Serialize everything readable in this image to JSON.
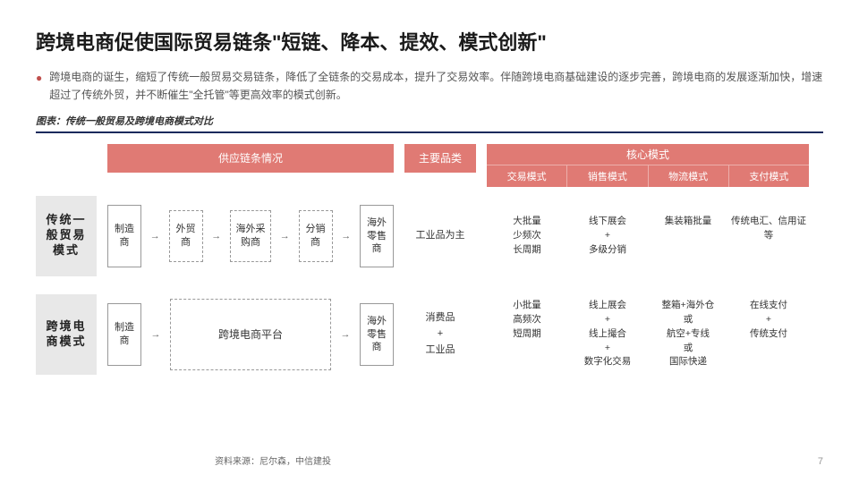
{
  "title": "跨境电商促使国际贸易链条\"短链、降本、提效、模式创新\"",
  "desc": "跨境电商的诞生，缩短了传统一般贸易交易链条，降低了全链条的交易成本，提升了交易效率。伴随跨境电商基础建设的逐步完善，跨境电商的发展逐渐加快，增速超过了传统外贸，并不断催生\"全托管\"等更高效率的模式创新。",
  "chart_caption": "图表：传统一般贸易及跨境电商模式对比",
  "headers": {
    "supply": "供应链条情况",
    "category": "主要品类",
    "core": "核心模式",
    "core_sub": [
      "交易模式",
      "销售模式",
      "物流模式",
      "支付模式"
    ]
  },
  "row1": {
    "label": "传统一般贸易模式",
    "nodes": [
      "制造商",
      "外贸商",
      "海外采购商",
      "分销商",
      "海外零售商"
    ],
    "category": "工业品为主",
    "core": [
      "大批量\n少频次\n长周期",
      "线下展会\n+\n多级分销",
      "集装箱批量",
      "传统电汇、信用证等"
    ]
  },
  "row2": {
    "label": "跨境电商模式",
    "nodes": {
      "start": "制造商",
      "platform": "跨境电商平台",
      "end": "海外零售商"
    },
    "category": "消费品\n+\n工业品",
    "core": [
      "小批量\n高频次\n短周期",
      "线上展会\n+\n线上撮合\n+\n数字化交易",
      "整箱+海外仓\n或\n航空+专线\n或\n国际快递",
      "在线支付\n+\n传统支付"
    ]
  },
  "source": "资料来源：尼尔森，中信建投",
  "page": "7",
  "colors": {
    "accent": "#e07a74",
    "bullet": "#c0504d",
    "hr": "#1a2a5c",
    "label_bg": "#e8e8e8"
  }
}
